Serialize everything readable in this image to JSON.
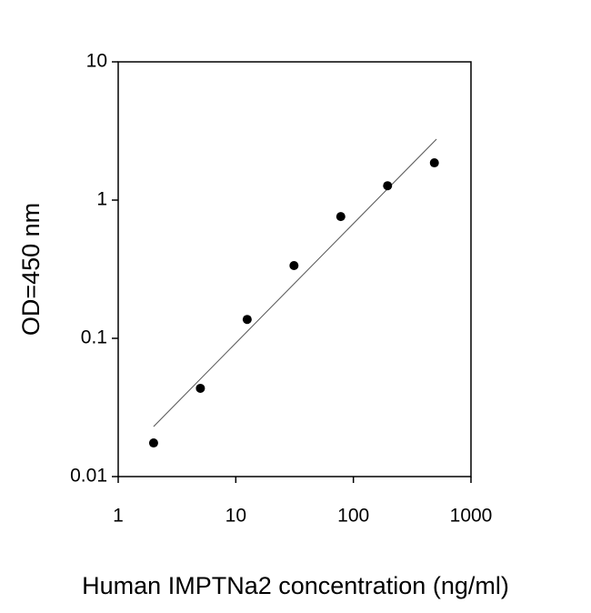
{
  "chart_data": {
    "type": "scatter",
    "x_label": "Human IMPTNa2 concentration (ng/ml)",
    "y_label": "OD=450 nm",
    "x_log": true,
    "y_log": true,
    "xlim": [
      1,
      1000
    ],
    "ylim": [
      0.01,
      10
    ],
    "xticks": [
      1,
      10,
      100,
      1000
    ],
    "yticks": [
      0.01,
      0.1,
      1,
      10
    ],
    "color": "#000000",
    "x": [
      2,
      5,
      12.5,
      31.25,
      78.13,
      195.31,
      488.28
    ],
    "values": [
      0.0175,
      0.0435,
      0.137,
      0.336,
      0.76,
      1.27,
      1.86
    ],
    "fit_line": {
      "x": [
        2,
        509
      ],
      "values": [
        0.023,
        2.76
      ],
      "color": "#555555"
    }
  }
}
